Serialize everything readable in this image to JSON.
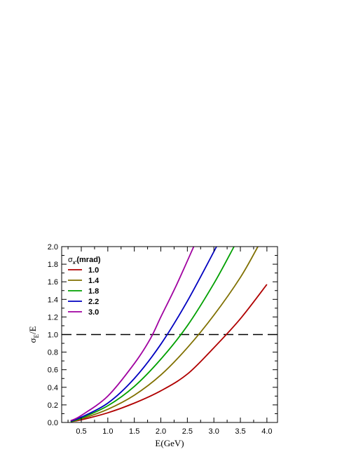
{
  "chart_data": {
    "type": "line",
    "xlabel": "E(GeV)",
    "ylabel": {
      "main": "σ",
      "sub": "E",
      "rest": "/E"
    },
    "xlim": [
      0.13,
      4.2
    ],
    "ylim": [
      0.0,
      2.0
    ],
    "xticks": [
      "0.5",
      "1.0",
      "1.5",
      "2.0",
      "2.5",
      "3.0",
      "3.5",
      "4.0"
    ],
    "yticks": [
      "0.0",
      "0.2",
      "0.4",
      "0.6",
      "0.8",
      "1.0",
      "1.2",
      "1.4",
      "1.6",
      "1.8",
      "2.0"
    ],
    "legend": {
      "title": {
        "main": "σ",
        "sub": "x'",
        "rest": "(mrad)"
      },
      "position": "top-left"
    },
    "reference_line": {
      "y": 1.0,
      "style": "dashed",
      "color": "#000000"
    },
    "series": [
      {
        "name": "1.0",
        "color": "#b00000",
        "x": [
          0.3,
          0.5,
          1.0,
          1.5,
          2.0,
          2.5,
          3.0,
          3.5,
          4.0
        ],
        "y": [
          0.01,
          0.03,
          0.11,
          0.22,
          0.36,
          0.55,
          0.85,
          1.18,
          1.57
        ]
      },
      {
        "name": "1.4",
        "color": "#807000",
        "x": [
          0.3,
          0.5,
          1.0,
          1.5,
          2.0,
          2.5,
          3.0,
          3.5,
          3.83
        ],
        "y": [
          0.01,
          0.04,
          0.15,
          0.31,
          0.54,
          0.85,
          1.22,
          1.65,
          2.0
        ]
      },
      {
        "name": "1.8",
        "color": "#00a000",
        "x": [
          0.3,
          0.5,
          1.0,
          1.5,
          2.0,
          2.5,
          3.0,
          3.38
        ],
        "y": [
          0.01,
          0.05,
          0.19,
          0.41,
          0.72,
          1.1,
          1.58,
          2.0
        ]
      },
      {
        "name": "2.2",
        "color": "#0000c0",
        "x": [
          0.3,
          0.5,
          1.0,
          1.5,
          2.0,
          2.5,
          3.05
        ],
        "y": [
          0.015,
          0.06,
          0.22,
          0.5,
          0.89,
          1.38,
          2.0
        ]
      },
      {
        "name": "3.0",
        "color": "#a000a0",
        "x": [
          0.3,
          0.5,
          1.0,
          1.5,
          1.8,
          2.0,
          2.3,
          2.62
        ],
        "y": [
          0.02,
          0.08,
          0.3,
          0.67,
          0.95,
          1.2,
          1.57,
          2.0
        ]
      }
    ]
  }
}
